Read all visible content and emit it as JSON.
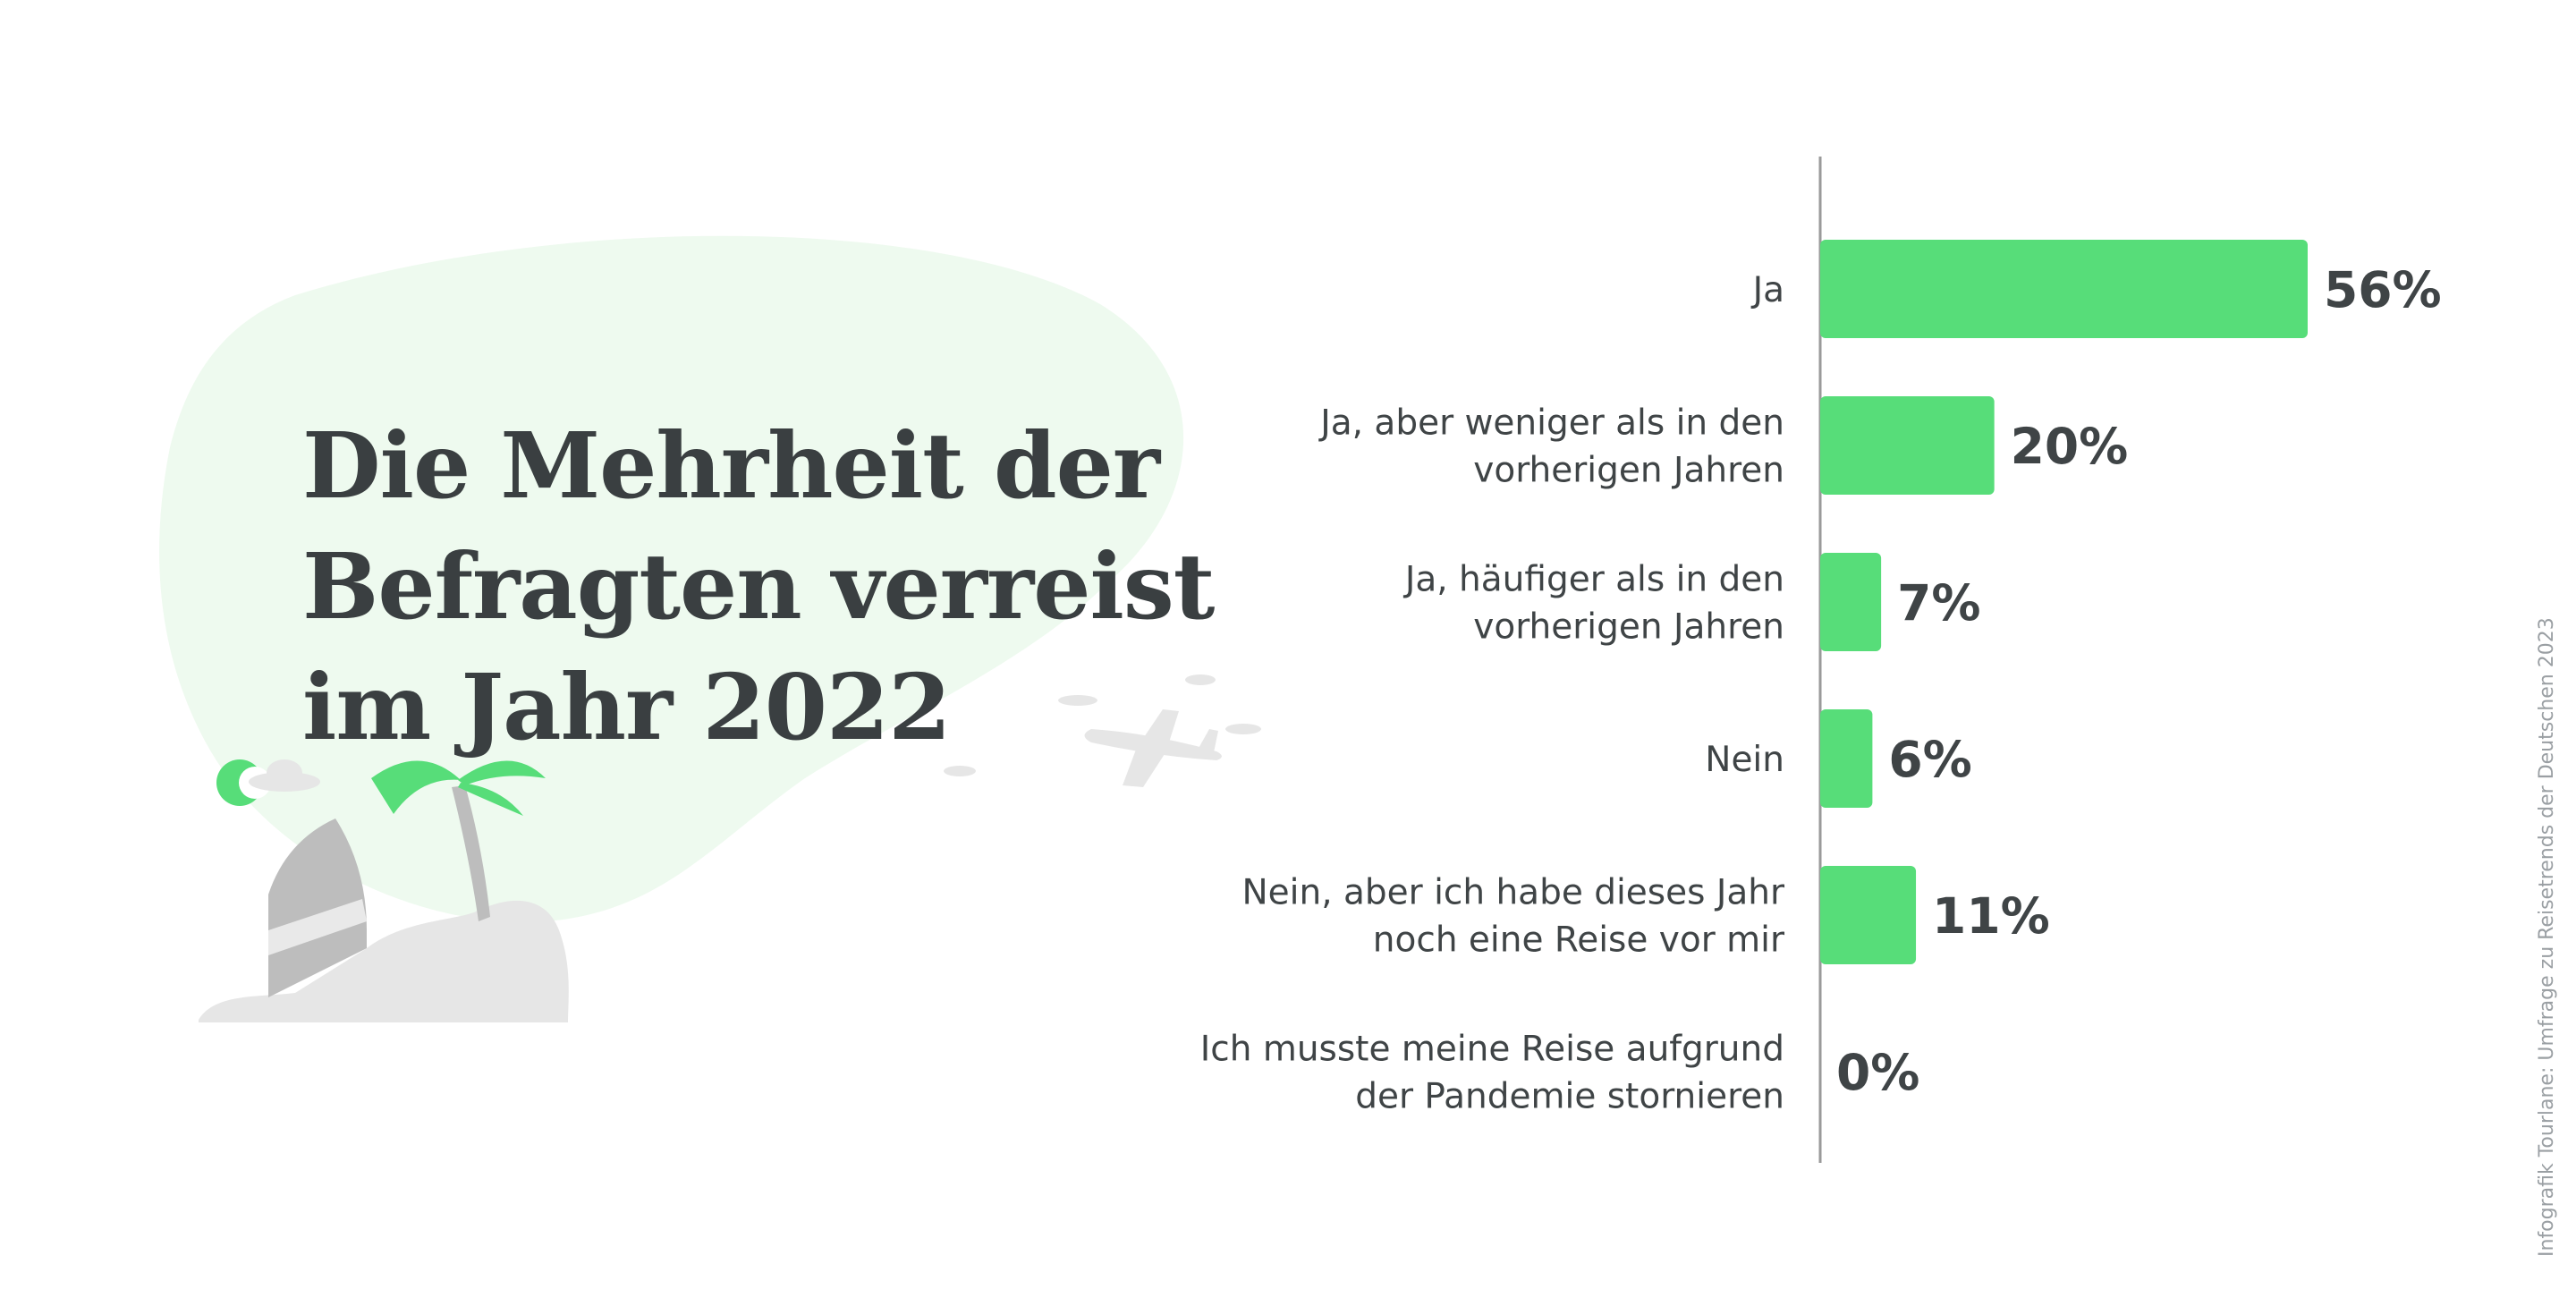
{
  "colors": {
    "bar": "#57dd79",
    "blob": "#eefaef",
    "text": "#3f4446",
    "axis": "#9a9a9a",
    "grey": "#bdbdbd",
    "light_grey": "#e6e6e6"
  },
  "headline": {
    "line1": "Die Mehrheit der",
    "line2": "Befragten verreist",
    "line3": "im Jahr 2022"
  },
  "illustration": {
    "icons": [
      "cloud-icon",
      "sun-icon",
      "palm-tree-icon",
      "surfboard-icon",
      "island-icon",
      "airplane-icon"
    ]
  },
  "source": "Infografik Tourlane: Umfrage zu Reisetrends der Deutschen 2023",
  "chart_data": {
    "type": "bar",
    "orientation": "horizontal",
    "title": "Die Mehrheit der Befragten verreist im Jahr 2022",
    "xlim": [
      0,
      56
    ],
    "unit": "%",
    "categories": [
      [
        "Ja"
      ],
      [
        "Ja, aber weniger als in den",
        "vorherigen Jahren"
      ],
      [
        "Ja, häufiger als in den",
        "vorherigen Jahren"
      ],
      [
        "Nein"
      ],
      [
        "Nein, aber ich habe dieses Jahr",
        "noch eine Reise vor mir"
      ],
      [
        "Ich musste meine Reise aufgrund",
        "der Pandemie stornieren"
      ]
    ],
    "values": [
      56,
      20,
      7,
      6,
      11,
      0
    ],
    "value_labels": [
      "56%",
      "20%",
      "7%",
      "6%",
      "11%",
      "0%"
    ]
  }
}
